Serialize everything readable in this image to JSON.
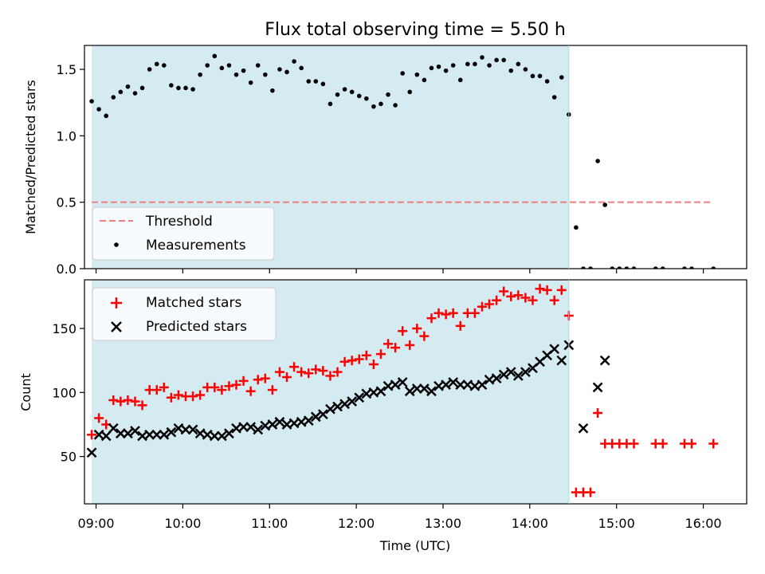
{
  "chart_data": [
    {
      "type": "scatter",
      "title": "Flux total observing time = 5.50 h",
      "xlabel": "",
      "ylabel": "Matched/Predicted stars",
      "xlim": [
        "08:52",
        "16:30"
      ],
      "ylim": [
        0,
        1.68
      ],
      "yticks": [
        0.0,
        0.5,
        1.0,
        1.5
      ],
      "ytick_labels": [
        "0.0",
        "0.5",
        "1.0",
        "1.5"
      ],
      "xticks": [
        "09:00",
        "10:00",
        "11:00",
        "12:00",
        "13:00",
        "14:00",
        "15:00",
        "16:00"
      ],
      "shaded_interval": [
        "08:57",
        "14:27"
      ],
      "shade_color": "#add8e6",
      "legend_location": "lower left",
      "threshold": {
        "name": "Threshold",
        "value": 0.5,
        "x_range": [
          "08:57",
          "16:06"
        ],
        "color": "#f47c7c",
        "style": "dashed"
      },
      "series": [
        {
          "name": "Measurements",
          "color": "#000000",
          "marker": "dot",
          "x": [
            "08:57",
            "09:02",
            "09:07",
            "09:12",
            "09:17",
            "09:22",
            "09:27",
            "09:32",
            "09:37",
            "09:42",
            "09:47",
            "09:52",
            "09:57",
            "10:02",
            "10:07",
            "10:12",
            "10:17",
            "10:22",
            "10:27",
            "10:32",
            "10:37",
            "10:42",
            "10:47",
            "10:52",
            "10:57",
            "11:02",
            "11:07",
            "11:12",
            "11:17",
            "11:22",
            "11:27",
            "11:32",
            "11:37",
            "11:42",
            "11:47",
            "11:52",
            "11:57",
            "12:02",
            "12:07",
            "12:12",
            "12:17",
            "12:22",
            "12:27",
            "12:32",
            "12:37",
            "12:42",
            "12:47",
            "12:52",
            "12:57",
            "13:02",
            "13:07",
            "13:12",
            "13:17",
            "13:22",
            "13:27",
            "13:32",
            "13:37",
            "13:42",
            "13:47",
            "13:52",
            "13:57",
            "14:02",
            "14:07",
            "14:12",
            "14:17",
            "14:22",
            "14:27",
            "14:32",
            "14:37",
            "14:42",
            "14:47",
            "14:52",
            "14:57",
            "15:02",
            "15:07",
            "15:12",
            "15:27",
            "15:32",
            "15:47",
            "15:52",
            "16:07"
          ],
          "y": [
            1.26,
            1.2,
            1.15,
            1.29,
            1.33,
            1.37,
            1.32,
            1.36,
            1.5,
            1.54,
            1.53,
            1.38,
            1.36,
            1.36,
            1.35,
            1.46,
            1.53,
            1.6,
            1.51,
            1.53,
            1.46,
            1.49,
            1.4,
            1.53,
            1.46,
            1.34,
            1.5,
            1.48,
            1.56,
            1.51,
            1.41,
            1.41,
            1.39,
            1.24,
            1.31,
            1.35,
            1.33,
            1.3,
            1.28,
            1.22,
            1.24,
            1.31,
            1.23,
            1.47,
            1.33,
            1.46,
            1.42,
            1.51,
            1.52,
            1.49,
            1.53,
            1.42,
            1.54,
            1.54,
            1.59,
            1.53,
            1.57,
            1.57,
            1.49,
            1.54,
            1.5,
            1.45,
            1.45,
            1.41,
            1.29,
            1.44,
            1.16,
            0.31,
            0.0,
            0.0,
            0.81,
            0.48,
            0.0,
            0.0,
            0.0,
            0.0,
            0.0,
            0.0,
            0.0,
            0.0,
            0.0
          ]
        }
      ]
    },
    {
      "type": "scatter",
      "title": "",
      "xlabel": "Time (UTC)",
      "ylabel": "Count",
      "xlim": [
        "08:52",
        "16:30"
      ],
      "ylim": [
        13,
        188
      ],
      "yticks": [
        50,
        100,
        150
      ],
      "ytick_labels": [
        "50",
        "100",
        "150"
      ],
      "xticks": [
        "09:00",
        "10:00",
        "11:00",
        "12:00",
        "13:00",
        "14:00",
        "15:00",
        "16:00"
      ],
      "xtick_labels": [
        "09:00",
        "10:00",
        "11:00",
        "12:00",
        "13:00",
        "14:00",
        "15:00",
        "16:00"
      ],
      "shaded_interval": [
        "08:57",
        "14:27"
      ],
      "shade_color": "#add8e6",
      "legend_location": "upper left",
      "series": [
        {
          "name": "Matched stars",
          "color": "#ff0000",
          "marker": "plus",
          "x": [
            "08:57",
            "09:02",
            "09:07",
            "09:12",
            "09:17",
            "09:22",
            "09:27",
            "09:32",
            "09:37",
            "09:42",
            "09:47",
            "09:52",
            "09:57",
            "10:02",
            "10:07",
            "10:12",
            "10:17",
            "10:22",
            "10:27",
            "10:32",
            "10:37",
            "10:42",
            "10:47",
            "10:52",
            "10:57",
            "11:02",
            "11:07",
            "11:12",
            "11:17",
            "11:22",
            "11:27",
            "11:32",
            "11:37",
            "11:42",
            "11:47",
            "11:52",
            "11:57",
            "12:02",
            "12:07",
            "12:12",
            "12:17",
            "12:22",
            "12:27",
            "12:32",
            "12:37",
            "12:42",
            "12:47",
            "12:52",
            "12:57",
            "13:02",
            "13:07",
            "13:12",
            "13:17",
            "13:22",
            "13:27",
            "13:32",
            "13:37",
            "13:42",
            "13:47",
            "13:52",
            "13:57",
            "14:02",
            "14:07",
            "14:12",
            "14:17",
            "14:22",
            "14:27",
            "14:32",
            "14:37",
            "14:42",
            "14:47",
            "14:52",
            "14:57",
            "15:02",
            "15:07",
            "15:12",
            "15:27",
            "15:32",
            "15:47",
            "15:52",
            "16:07"
          ],
          "y": [
            67,
            80,
            75,
            94,
            93,
            94,
            93,
            90,
            102,
            102,
            104,
            96,
            98,
            97,
            97,
            98,
            104,
            104,
            102,
            105,
            106,
            109,
            101,
            110,
            111,
            102,
            116,
            112,
            120,
            116,
            115,
            118,
            117,
            113,
            116,
            124,
            125,
            126,
            129,
            122,
            130,
            138,
            135,
            148,
            137,
            150,
            144,
            158,
            162,
            161,
            162,
            152,
            162,
            162,
            167,
            169,
            172,
            179,
            175,
            176,
            174,
            172,
            181,
            180,
            172,
            180,
            160,
            22,
            22,
            22,
            84,
            60,
            60,
            60,
            60,
            60,
            60,
            60,
            60,
            60,
            60
          ]
        },
        {
          "name": "Predicted stars",
          "color": "#000000",
          "marker": "x",
          "x": [
            "08:57",
            "09:02",
            "09:07",
            "09:12",
            "09:17",
            "09:22",
            "09:27",
            "09:32",
            "09:37",
            "09:42",
            "09:47",
            "09:52",
            "09:57",
            "10:02",
            "10:07",
            "10:12",
            "10:17",
            "10:22",
            "10:27",
            "10:32",
            "10:37",
            "10:42",
            "10:47",
            "10:52",
            "10:57",
            "11:02",
            "11:07",
            "11:12",
            "11:17",
            "11:22",
            "11:27",
            "11:32",
            "11:37",
            "11:42",
            "11:47",
            "11:52",
            "11:57",
            "12:02",
            "12:07",
            "12:12",
            "12:17",
            "12:22",
            "12:27",
            "12:32",
            "12:37",
            "12:42",
            "12:47",
            "12:52",
            "12:57",
            "13:02",
            "13:07",
            "13:12",
            "13:17",
            "13:22",
            "13:27",
            "13:32",
            "13:37",
            "13:42",
            "13:47",
            "13:52",
            "13:57",
            "14:02",
            "14:07",
            "14:12",
            "14:17",
            "14:22",
            "14:27",
            "14:37",
            "14:47",
            "14:52"
          ],
          "y": [
            53,
            67,
            66,
            72,
            68,
            68,
            70,
            66,
            67,
            67,
            67,
            69,
            72,
            71,
            71,
            68,
            67,
            66,
            66,
            68,
            72,
            73,
            73,
            71,
            74,
            75,
            77,
            75,
            76,
            77,
            78,
            81,
            83,
            87,
            89,
            91,
            93,
            96,
            99,
            100,
            101,
            105,
            106,
            108,
            101,
            103,
            103,
            101,
            105,
            106,
            108,
            106,
            106,
            105,
            106,
            110,
            111,
            114,
            116,
            113,
            116,
            119,
            124,
            129,
            134,
            125,
            137,
            72,
            104,
            125
          ]
        }
      ]
    }
  ]
}
